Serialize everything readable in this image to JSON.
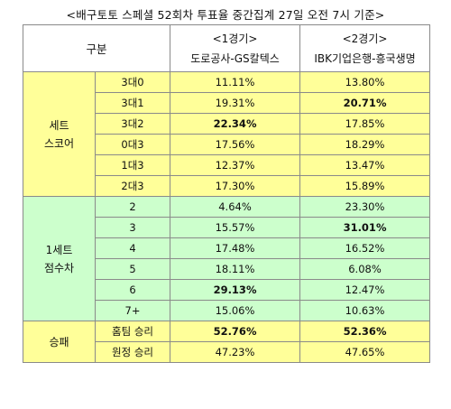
{
  "title": "<배구토토 스페셜 52회차 투표율 중간집계 27일 오전 7시 기준>",
  "header": {
    "category": "구분",
    "game1_label": "<1경기>",
    "game1_teams": "도로공사-GS칼텍스",
    "game2_label": "<2경기>",
    "game2_teams": "IBK기업은행-흥국생명"
  },
  "sections": [
    {
      "name_line1": "세트",
      "name_line2": "스코어",
      "rows": [
        {
          "label": "3대0",
          "g1": "11.11%",
          "g2": "13.80%"
        },
        {
          "label": "3대1",
          "g1": "19.31%",
          "g2": "20.71%"
        },
        {
          "label": "3대2",
          "g1": "22.34%",
          "g2": "17.85%"
        },
        {
          "label": "0대3",
          "g1": "17.56%",
          "g2": "18.29%"
        },
        {
          "label": "1대3",
          "g1": "12.37%",
          "g2": "13.47%"
        },
        {
          "label": "2대3",
          "g1": "17.30%",
          "g2": "15.89%"
        }
      ]
    },
    {
      "name_line1": "1세트",
      "name_line2": "점수차",
      "rows": [
        {
          "label": "2",
          "g1": "4.64%",
          "g2": "23.30%"
        },
        {
          "label": "3",
          "g1": "15.57%",
          "g2": "31.01%"
        },
        {
          "label": "4",
          "g1": "17.48%",
          "g2": "16.52%"
        },
        {
          "label": "5",
          "g1": "18.11%",
          "g2": "6.08%"
        },
        {
          "label": "6",
          "g1": "29.13%",
          "g2": "12.47%"
        },
        {
          "label": "7+",
          "g1": "15.06%",
          "g2": "10.63%"
        }
      ]
    },
    {
      "name_line1": "승패",
      "rows": [
        {
          "label": "홈팀 승리",
          "g1": "52.76%",
          "g2": "52.36%"
        },
        {
          "label": "원정 승리",
          "g1": "47.23%",
          "g2": "47.65%"
        }
      ]
    }
  ],
  "colors": {
    "set_score_bg": "#ffff99",
    "margin_bg": "#ccffcc",
    "result_bg": "#ffff99"
  }
}
